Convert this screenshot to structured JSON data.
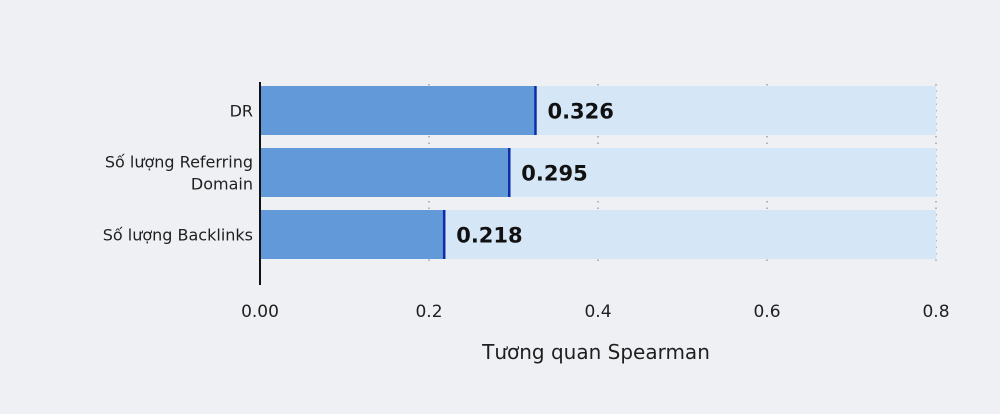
{
  "chart_data": {
    "type": "bar",
    "orientation": "horizontal",
    "categories": [
      [
        "DR"
      ],
      [
        "Số lượng Referring",
        "Domain"
      ],
      [
        "Số lượng Backlinks"
      ]
    ],
    "values": [
      0.326,
      0.295,
      0.218
    ],
    "value_labels": [
      "0.326",
      "0.295",
      "0.218"
    ],
    "xlabel": "Tương quan Spearman",
    "ylabel": "",
    "xlim": [
      0,
      0.8
    ],
    "xticks": [
      0,
      0.2,
      0.4,
      0.6,
      0.8
    ],
    "xtick_labels": [
      "0.00",
      "0.2",
      "0.4",
      "0.6",
      "0.8"
    ],
    "grid": "vertical dotted",
    "colors": {
      "bar": "#6199d9",
      "track": "#d5e6f7",
      "bar_edge": "#0f2ca8",
      "axis": "#111111",
      "grid": "#9aa3ad",
      "background": "#eef0f4"
    }
  }
}
